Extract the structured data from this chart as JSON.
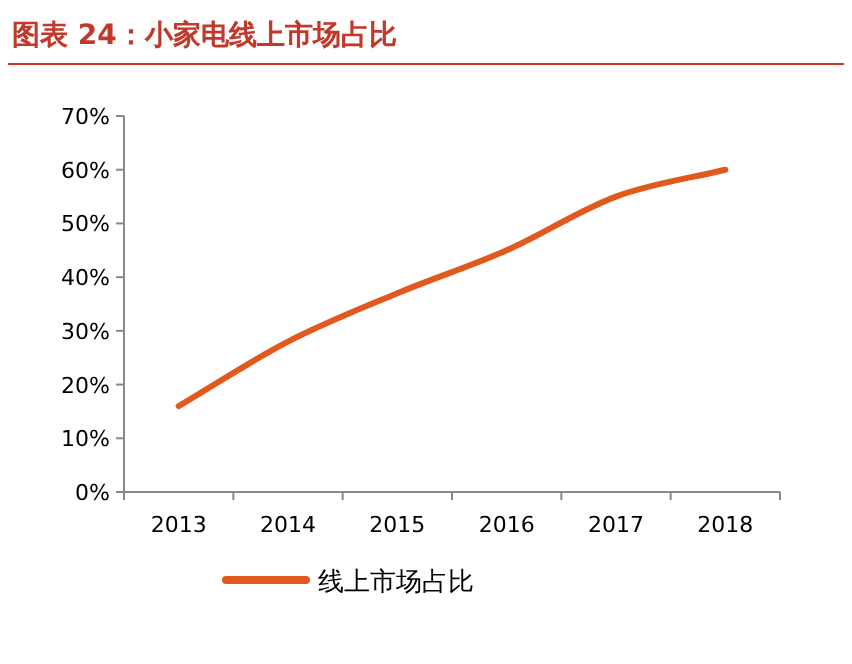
{
  "chart_data": {
    "type": "line",
    "title": "图表 24：小家电线上市场占比",
    "categories": [
      "2013",
      "2014",
      "2015",
      "2016",
      "2017",
      "2018"
    ],
    "series": [
      {
        "name": "线上市场占比",
        "color": "#e2591d",
        "values": [
          16,
          28,
          37,
          45,
          55,
          60
        ]
      }
    ],
    "ylim": [
      0,
      70
    ],
    "yticks": [
      {
        "value": 0,
        "label": "0%"
      },
      {
        "value": 10,
        "label": "10%"
      },
      {
        "value": 20,
        "label": "20%"
      },
      {
        "value": 30,
        "label": "30%"
      },
      {
        "value": 40,
        "label": "40%"
      },
      {
        "value": 50,
        "label": "50%"
      },
      {
        "value": 60,
        "label": "60%"
      },
      {
        "value": 70,
        "label": "70%"
      }
    ],
    "grid": false,
    "legend": "bottom",
    "marker": "none",
    "line_style": "solid"
  }
}
